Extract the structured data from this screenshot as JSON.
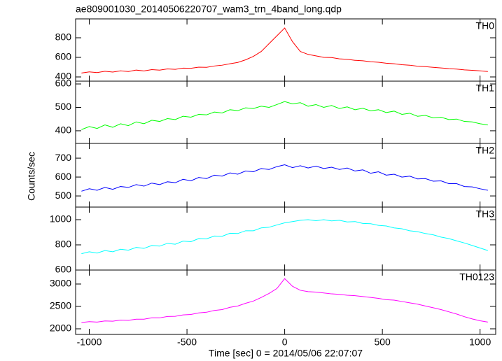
{
  "title": "ae809001030_20140506220707_wam3_trn_4band_long.qdp",
  "ylabel": "Counts/sec",
  "xlabel": "Time [sec] 0 = 2014/05/06 22:07:07",
  "xlim": [
    -1070,
    1080
  ],
  "xticks": [
    -1000,
    -500,
    0,
    500,
    1000
  ],
  "x": [
    -1040,
    -1000,
    -960,
    -920,
    -880,
    -840,
    -800,
    -760,
    -720,
    -680,
    -640,
    -600,
    -560,
    -520,
    -480,
    -440,
    -400,
    -360,
    -320,
    -280,
    -240,
    -200,
    -160,
    -120,
    -80,
    -40,
    0,
    40,
    80,
    120,
    160,
    200,
    240,
    280,
    320,
    360,
    400,
    440,
    480,
    520,
    560,
    600,
    640,
    680,
    720,
    760,
    800,
    840,
    880,
    920,
    960,
    1000,
    1040
  ],
  "chart_data": [
    {
      "type": "line",
      "ylim": [
        357,
        993
      ],
      "yticks": [
        400,
        600,
        800
      ],
      "series": [
        {
          "name": "TH0",
          "color": "#ff0000",
          "values": [
            440,
            452,
            445,
            458,
            450,
            462,
            455,
            470,
            462,
            475,
            470,
            482,
            478,
            490,
            488,
            500,
            498,
            512,
            520,
            535,
            548,
            575,
            610,
            660,
            740,
            820,
            900,
            760,
            660,
            630,
            615,
            600,
            598,
            585,
            580,
            570,
            565,
            555,
            550,
            540,
            535,
            525,
            520,
            510,
            505,
            498,
            492,
            485,
            480,
            472,
            468,
            462,
            455
          ]
        }
      ]
    },
    {
      "type": "line",
      "ylim": [
        346,
        612
      ],
      "yticks": [
        400,
        500,
        600
      ],
      "series": [
        {
          "name": "TH1",
          "color": "#00ff00",
          "values": [
            405,
            418,
            410,
            425,
            415,
            430,
            422,
            438,
            430,
            445,
            440,
            452,
            448,
            462,
            458,
            470,
            468,
            480,
            476,
            490,
            486,
            498,
            495,
            505,
            500,
            512,
            525,
            515,
            520,
            505,
            512,
            500,
            508,
            495,
            502,
            490,
            496,
            485,
            490,
            478,
            484,
            470,
            475,
            462,
            466,
            455,
            458,
            448,
            450,
            440,
            438,
            430,
            425
          ]
        }
      ]
    },
    {
      "type": "line",
      "ylim": [
        441,
        778
      ],
      "yticks": [
        500,
        600,
        700
      ],
      "series": [
        {
          "name": "TH2",
          "color": "#0000ff",
          "values": [
            525,
            538,
            530,
            545,
            535,
            550,
            545,
            560,
            552,
            568,
            560,
            575,
            570,
            588,
            580,
            598,
            592,
            610,
            605,
            622,
            615,
            632,
            628,
            645,
            640,
            655,
            665,
            650,
            660,
            648,
            658,
            645,
            652,
            640,
            648,
            632,
            638,
            620,
            628,
            610,
            615,
            600,
            605,
            590,
            592,
            578,
            580,
            565,
            565,
            550,
            548,
            538,
            530
          ]
        }
      ]
    },
    {
      "type": "line",
      "ylim": [
        600,
        1100
      ],
      "yticks": [
        600,
        800,
        1000
      ],
      "series": [
        {
          "name": "TH3",
          "color": "#00ffff",
          "values": [
            730,
            745,
            735,
            755,
            745,
            765,
            758,
            780,
            772,
            795,
            790,
            812,
            805,
            830,
            825,
            850,
            848,
            870,
            868,
            892,
            890,
            912,
            912,
            935,
            940,
            958,
            975,
            985,
            995,
            1000,
            992,
            1000,
            990,
            995,
            982,
            985,
            970,
            968,
            955,
            950,
            935,
            928,
            912,
            905,
            890,
            880,
            862,
            850,
            832,
            815,
            795,
            775,
            755
          ]
        }
      ]
    },
    {
      "type": "line",
      "ylim": [
        1875,
        3312
      ],
      "yticks": [
        2000,
        2500,
        3000
      ],
      "series": [
        {
          "name": "TH0123",
          "color": "#ff00ff",
          "values": [
            2140,
            2160,
            2150,
            2175,
            2170,
            2195,
            2190,
            2215,
            2215,
            2245,
            2245,
            2275,
            2280,
            2310,
            2320,
            2355,
            2370,
            2410,
            2430,
            2480,
            2510,
            2570,
            2620,
            2700,
            2790,
            2900,
            3120,
            2950,
            2860,
            2830,
            2820,
            2800,
            2780,
            2770,
            2750,
            2740,
            2720,
            2700,
            2680,
            2650,
            2640,
            2610,
            2580,
            2550,
            2510,
            2470,
            2430,
            2380,
            2330,
            2270,
            2220,
            2180,
            2150
          ]
        }
      ]
    }
  ]
}
